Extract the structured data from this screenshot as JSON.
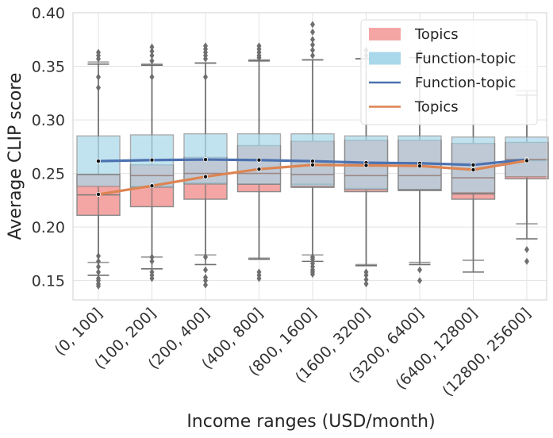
{
  "chart_data": {
    "type": "box",
    "xlabel": "Income ranges (USD/month)",
    "ylabel": "Average CLIP score",
    "ylim": [
      0.132,
      0.4
    ],
    "yticks": [
      "0.15",
      "0.20",
      "0.25",
      "0.30",
      "0.35",
      "0.40"
    ],
    "grid": true,
    "legend_position": "top-right",
    "categories": [
      "(0, 100]",
      "(100, 200]",
      "(200, 400]",
      "(400, 800]",
      "(800, 1600]",
      "(1600, 3200]",
      "(3200, 6400]",
      "(6400, 12800]",
      "(12800, 25600]"
    ],
    "legend": [
      {
        "label": "Topics",
        "kind": "box",
        "color": "#f4a6a4"
      },
      {
        "label": "Function-topic",
        "kind": "box",
        "color": "#a8d8ea"
      },
      {
        "label": "Function-topic",
        "kind": "line",
        "color": "#4c72b0"
      },
      {
        "label": "Topics",
        "kind": "line",
        "color": "#dd8452"
      }
    ],
    "box_series": [
      {
        "name": "Topics",
        "color": "#f4a6a4",
        "q1": [
          0.211,
          0.219,
          0.226,
          0.233,
          0.237,
          0.233,
          0.234,
          0.226,
          0.245
        ],
        "median": [
          0.23,
          0.238,
          0.241,
          0.24,
          0.24,
          0.236,
          0.235,
          0.231,
          0.262
        ],
        "q3": [
          0.249,
          0.258,
          0.265,
          0.276,
          0.28,
          0.281,
          0.281,
          0.278,
          0.279
        ],
        "whisker_low": [
          0.155,
          0.161,
          0.165,
          0.17,
          0.168,
          0.164,
          0.165,
          0.158,
          0.189
        ],
        "whisker_high": [
          0.352,
          0.351,
          0.353,
          0.355,
          0.356,
          0.357,
          0.358,
          0.355,
          0.323
        ],
        "outliers": [
          [
            0.145,
            0.147,
            0.15,
            0.152,
            0.158,
            0.163,
            0.168,
            0.173,
            0.357,
            0.36,
            0.363,
            0.34,
            0.33
          ],
          [
            0.152,
            0.155,
            0.158,
            0.168,
            0.172,
            0.355,
            0.36,
            0.364,
            0.368,
            0.34
          ],
          [
            0.146,
            0.15,
            0.153,
            0.16,
            0.172,
            0.357,
            0.36,
            0.363,
            0.366,
            0.369,
            0.34
          ],
          [
            0.152,
            0.155,
            0.158,
            0.358,
            0.36,
            0.363,
            0.366,
            0.369
          ],
          [
            0.156,
            0.158,
            0.16,
            0.163,
            0.166,
            0.17,
            0.172,
            0.36,
            0.365,
            0.37,
            0.375,
            0.382,
            0.389
          ],
          [
            0.147,
            0.151,
            0.155,
            0.158,
            0.36,
            0.365
          ],
          [
            0.15,
            0.16,
            0.36,
            0.363
          ],
          [],
          [
            0.168,
            0.179
          ]
        ]
      },
      {
        "name": "Function-topic",
        "color": "#a8d8ea",
        "q1": [
          0.238,
          0.237,
          0.24,
          0.24,
          0.238,
          0.235,
          0.235,
          0.232,
          0.247
        ],
        "median": [
          0.249,
          0.248,
          0.25,
          0.25,
          0.249,
          0.248,
          0.248,
          0.246,
          0.263
        ],
        "q3": [
          0.285,
          0.286,
          0.287,
          0.287,
          0.287,
          0.285,
          0.285,
          0.284,
          0.284
        ],
        "whisker_low": [
          0.167,
          0.172,
          0.174,
          0.171,
          0.174,
          0.165,
          0.167,
          0.169,
          0.203
        ],
        "whisker_high": [
          0.354,
          0.352,
          0.353,
          0.356,
          0.356,
          0.357,
          0.358,
          0.355,
          0.327
        ],
        "outliers": [
          [],
          [],
          [],
          [],
          [],
          [],
          [],
          [],
          []
        ]
      }
    ],
    "line_series": [
      {
        "name": "Function-topic",
        "color": "#4c72b0",
        "values": [
          0.2615,
          0.2625,
          0.263,
          0.2625,
          0.2615,
          0.26,
          0.2595,
          0.258,
          0.263
        ]
      },
      {
        "name": "Topics",
        "color": "#dd8452",
        "values": [
          0.2305,
          0.2385,
          0.247,
          0.254,
          0.258,
          0.2575,
          0.257,
          0.2535,
          0.262
        ]
      }
    ]
  }
}
